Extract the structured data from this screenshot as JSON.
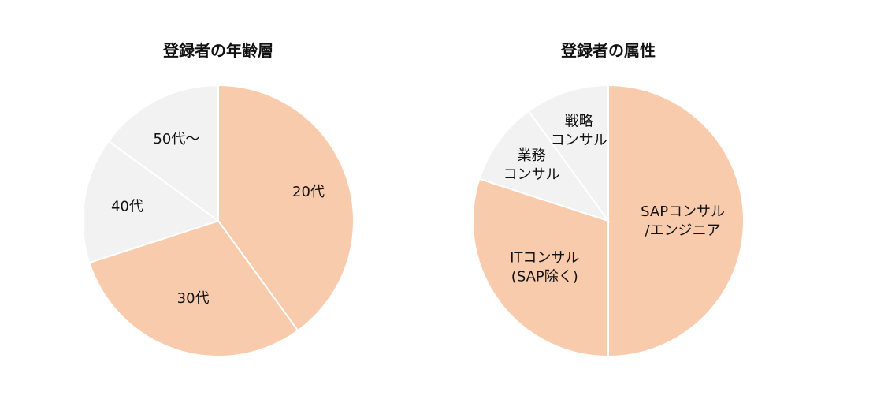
{
  "colors": {
    "highlight": "#f8cbad",
    "muted": "#f2f2f2",
    "border": "#ffffff",
    "text": "#111111"
  },
  "chart_data": [
    {
      "type": "pie",
      "title": "登録者の年齢層",
      "categories": [
        "20代",
        "30代",
        "40代",
        "50代～"
      ],
      "values": [
        40,
        30,
        15,
        15
      ],
      "slice_colors": [
        "highlight",
        "highlight",
        "muted",
        "muted"
      ]
    },
    {
      "type": "pie",
      "title": "登録者の属性",
      "categories": [
        "SAPコンサル/エンジニア",
        "ITコンサル(SAP除く)",
        "業務コンサル",
        "戦略コンサル"
      ],
      "label_lines": [
        [
          "SAPコンサル",
          "/エンジニア"
        ],
        [
          "ITコンサル",
          "(SAP除く)"
        ],
        [
          "業務",
          "コンサル"
        ],
        [
          "戦略",
          "コンサル"
        ]
      ],
      "values": [
        50,
        30,
        10,
        10
      ],
      "slice_colors": [
        "highlight",
        "highlight",
        "muted",
        "muted"
      ]
    }
  ]
}
